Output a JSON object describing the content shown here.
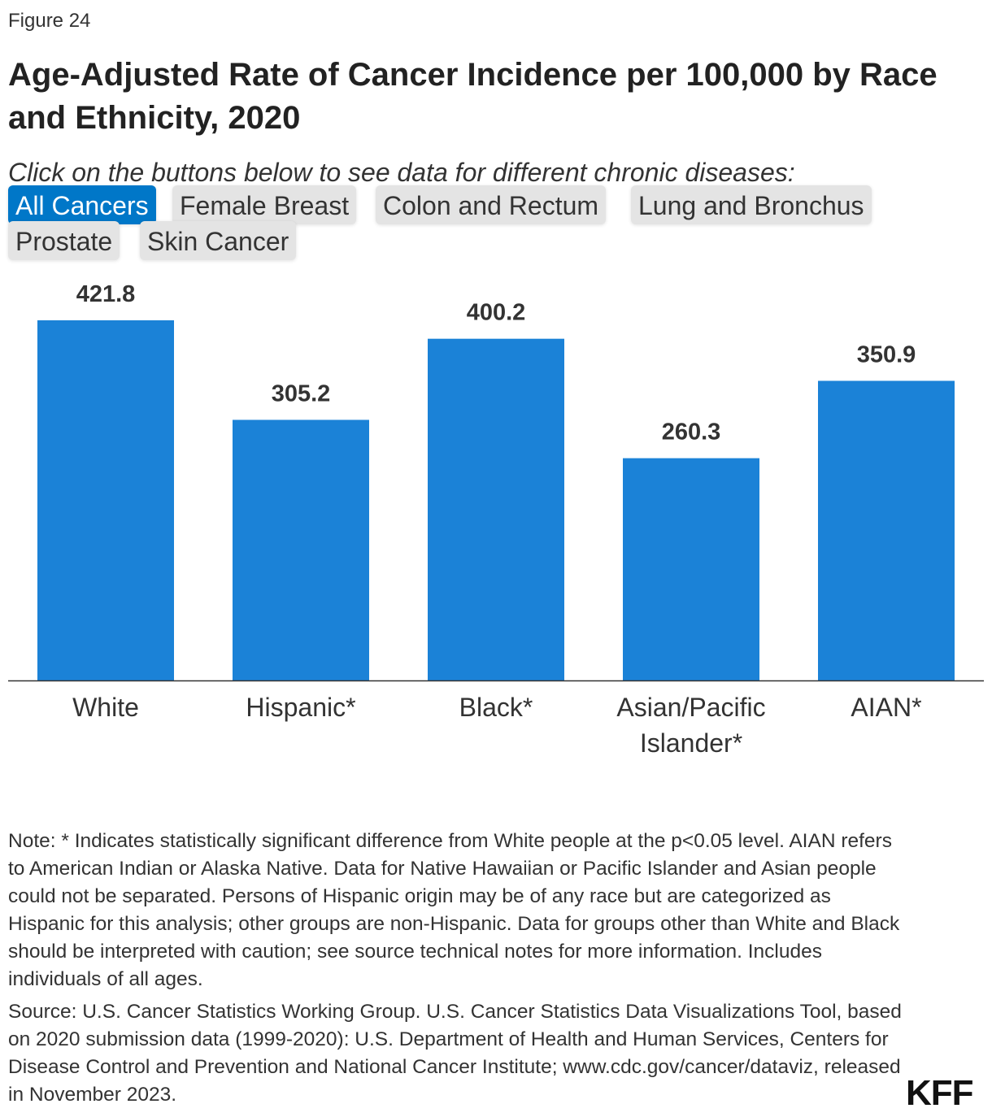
{
  "figure_label": "Figure 24",
  "title": "Age-Adjusted Rate of Cancer Incidence per 100,000 by Race and Ethnicity, 2020",
  "instructions": "Click on the buttons below to see data for different chronic diseases:",
  "buttons": [
    {
      "label": "All Cancers",
      "active": true
    },
    {
      "label": "Female Breast",
      "active": false
    },
    {
      "label": "Colon and Rectum",
      "active": false
    },
    {
      "label": "Lung and Bronchus",
      "active": false
    },
    {
      "label": "Prostate",
      "active": false
    },
    {
      "label": "Skin Cancer",
      "active": false
    }
  ],
  "chart_data": {
    "type": "bar",
    "categories": [
      "White",
      "Hispanic*",
      "Black*",
      "Asian/Pacific Islander*",
      "AIAN*"
    ],
    "values": [
      421.8,
      305.2,
      400.2,
      260.3,
      350.9
    ],
    "value_labels": [
      "421.8",
      "305.2",
      "400.2",
      "260.3",
      "350.9"
    ],
    "bar_color": "#1b82d7",
    "grid": false,
    "ylim": [
      0,
      421.8
    ]
  },
  "note": "Note: * Indicates statistically significant difference from White people at the p<0.05 level. AIAN refers to American Indian or Alaska Native. Data for Native Hawaiian or Pacific Islander and Asian people could not be separated. Persons of Hispanic origin may be of any race but are categorized as Hispanic for this analysis; other groups are non-Hispanic. Data for groups other than White and Black should be interpreted with caution; see source technical notes for more information. Includes individuals of all ages.",
  "source": "Source: U.S. Cancer Statistics Working Group. U.S. Cancer Statistics Data Visualizations Tool, based on 2020 submission data (1999-2020): U.S. Department of Health and Human Services, Centers for Disease Control and Prevention and National Cancer Institute; www.cdc.gov/cancer/dataviz, released in November 2023.",
  "logo": "KFF"
}
